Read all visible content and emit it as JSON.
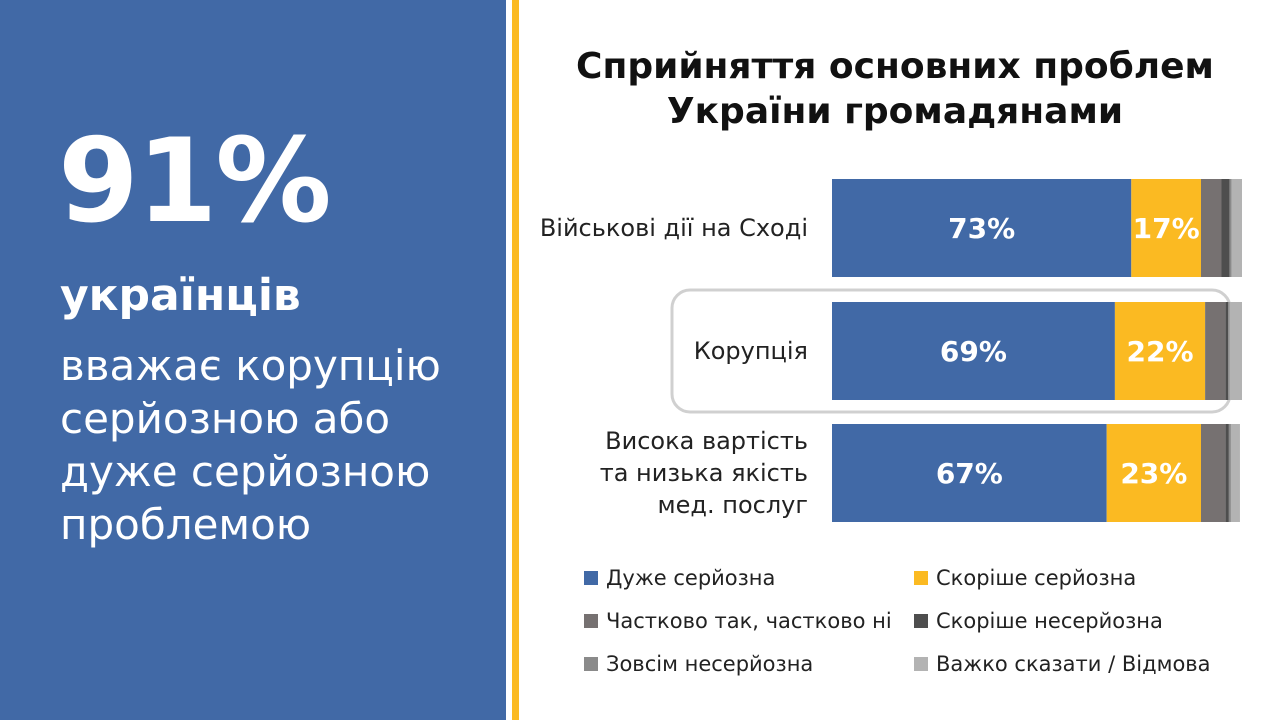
{
  "left_panel": {
    "big_number": "91%",
    "subject": "українців",
    "description": "вважає корупцію серйозною або дуже серйозною проблемою",
    "background_color": "#4169A6"
  },
  "accent_color": "#FBBA22",
  "chart_data": {
    "type": "bar",
    "orientation": "horizontal",
    "stacked": true,
    "title": "Сприйняття основних проблем України громадянами",
    "categories": [
      "Військові дії на Сході",
      "Корупція",
      "Висока вартість та низька якість мед. послуг"
    ],
    "highlighted_category": "Корупція",
    "xlim": [
      0,
      100
    ],
    "series": [
      {
        "name": "Дуже серйозна",
        "color": "#4169A6",
        "values": [
          73,
          69,
          67
        ],
        "labels": [
          "73%",
          "69%",
          "67%"
        ]
      },
      {
        "name": "Скоріше серйозна",
        "color": "#FBBA22",
        "values": [
          17,
          22,
          23
        ],
        "labels": [
          "17%",
          "22%",
          "23%"
        ]
      },
      {
        "name": "Частково так, частково ні",
        "color": "#767171",
        "values": [
          5,
          5,
          6
        ],
        "labels": [
          "",
          "",
          ""
        ]
      },
      {
        "name": "Скоріше несерйозна",
        "color": "#4E4E4E",
        "values": [
          2,
          0.6,
          0.8
        ],
        "labels": [
          "",
          "",
          ""
        ]
      },
      {
        "name": "Зовсім несерйозна",
        "color": "#8A8A8A",
        "values": [
          0.5,
          0.4,
          0.5
        ],
        "labels": [
          "",
          "",
          ""
        ]
      },
      {
        "name": "Важко сказати / Відмова",
        "color": "#B3B3B3",
        "values": [
          2.5,
          3,
          2.2
        ],
        "labels": [
          "",
          "",
          ""
        ]
      }
    ],
    "legend_position": "bottom",
    "grid": false
  }
}
